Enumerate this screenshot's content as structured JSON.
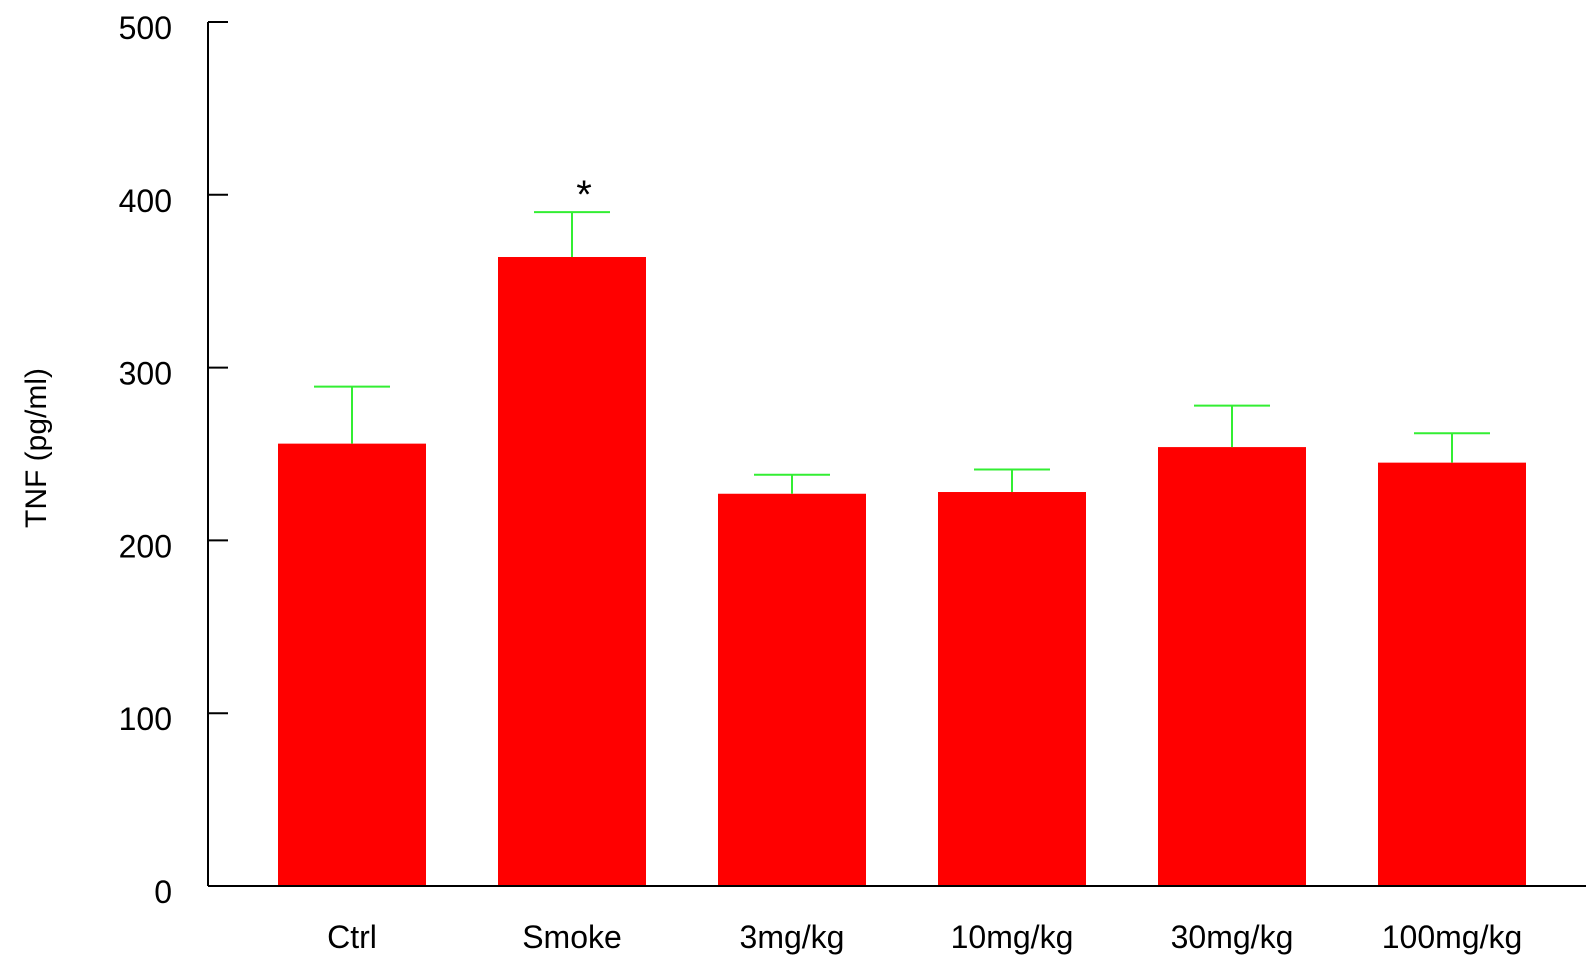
{
  "chart_data": {
    "type": "bar",
    "title": "",
    "xlabel": "",
    "ylabel": "TNF (pg/ml)",
    "ylim": [
      0,
      500
    ],
    "yticks": [
      0,
      100,
      200,
      300,
      400,
      500
    ],
    "grid": false,
    "legend": "none",
    "categories": [
      "Ctrl",
      "Smoke",
      "3mg/kg",
      "10mg/kg",
      "30mg/kg",
      "100mg/kg"
    ],
    "series": [
      {
        "values": [
          256,
          364,
          227,
          228,
          254,
          245
        ],
        "error_upper": [
          33,
          26,
          11,
          13,
          24,
          17
        ],
        "color": "#ff0000",
        "error_color": "#33ee33"
      }
    ],
    "annotations": [
      {
        "category": "Smoke",
        "text": "*"
      }
    ]
  }
}
